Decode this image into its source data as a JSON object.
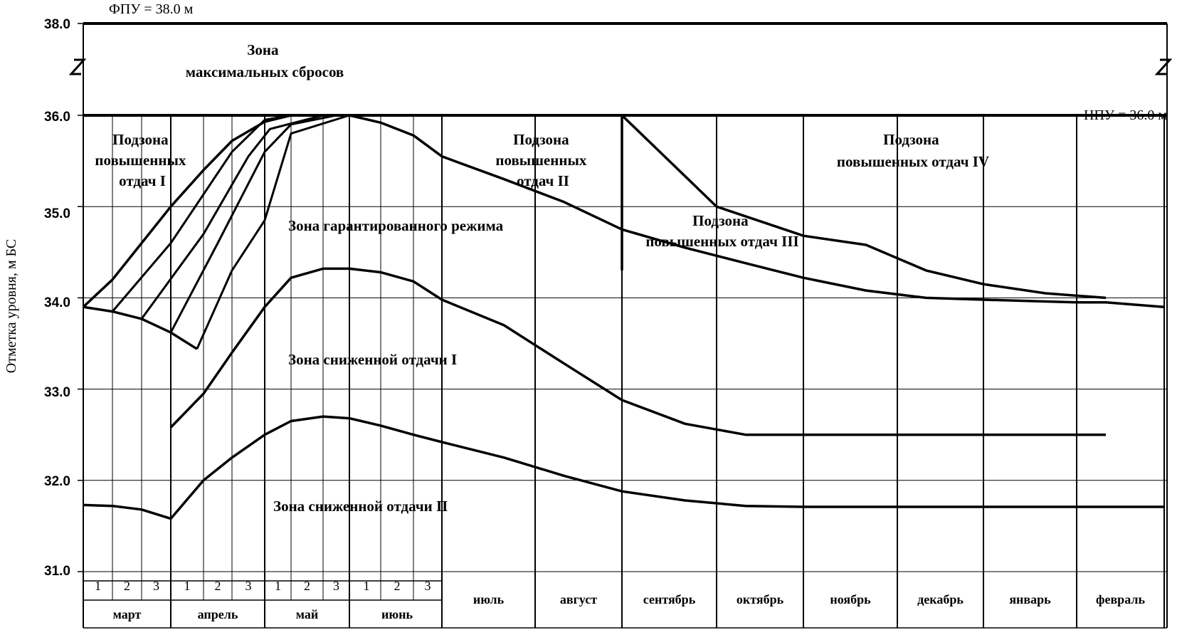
{
  "chart_data": {
    "type": "line",
    "ylabel": "Отметка уровня, м БС",
    "ylim": [
      31.0,
      38.0
    ],
    "y_axis_break": [
      36.0,
      38.0
    ],
    "y_ticks": [
      "31.0",
      "32.0",
      "33.0",
      "34.0",
      "35.0",
      "36.0",
      "38.0"
    ],
    "grid": true,
    "decades": [
      "1",
      "2",
      "3"
    ],
    "months": [
      "март",
      "апрель",
      "май",
      "июнь",
      "июль",
      "август",
      "сентябрь",
      "октябрь",
      "ноябрь",
      "декабрь",
      "январь",
      "февраль"
    ],
    "levels": [
      {
        "label": "ФПУ = 38.0 м",
        "y": 38.0
      },
      {
        "label": "НПУ = 36.0 м",
        "y": 36.0
      }
    ],
    "zone_labels": [
      {
        "lines": [
          "Зона",
          "максимальных сбросов"
        ]
      },
      {
        "lines": [
          "Подзона",
          "повышенных",
          "отдач I"
        ]
      },
      {
        "lines": [
          "Подзона",
          "повышенных",
          "отдач II"
        ]
      },
      {
        "lines": [
          "Подзона",
          "повышенных отдач III"
        ]
      },
      {
        "lines": [
          "Подзона",
          "повышенных отдач IV"
        ]
      },
      {
        "lines": [
          "Зона гарантированного режима"
        ]
      },
      {
        "lines": [
          "Зона сниженной отдачи I"
        ]
      },
      {
        "lines": [
          "Зона сниженной отдачи II"
        ]
      }
    ],
    "series": [
      {
        "x": [
          0,
          1,
          2,
          3,
          4,
          5,
          6,
          7,
          8,
          9,
          10,
          11,
          12,
          14,
          16,
          18,
          20,
          22,
          24,
          26,
          28,
          30,
          32,
          33,
          34,
          36
        ],
        "y": [
          31.73,
          31.72,
          31.68,
          31.58,
          32.0,
          32.25,
          32.5,
          32.65,
          32.7,
          32.68,
          32.6,
          32.5,
          32.42,
          32.25,
          32.05,
          31.88,
          31.78,
          31.72,
          31.71,
          31.71,
          31.71,
          31.71,
          31.71,
          31.71,
          31.71,
          31.71
        ]
      },
      {
        "x": [
          3,
          4,
          5,
          6,
          7,
          8,
          9,
          10,
          11,
          12,
          14,
          16,
          18,
          20,
          22,
          24,
          26,
          28,
          30,
          32,
          33,
          34
        ],
        "y": [
          32.58,
          32.95,
          33.4,
          33.9,
          34.22,
          34.32,
          34.32,
          34.28,
          34.18,
          33.98,
          33.7,
          33.28,
          32.88,
          32.62,
          32.5,
          32.5,
          32.5,
          32.5,
          32.5,
          32.5,
          32.5,
          32.5
        ]
      },
      {
        "x": [
          0,
          1,
          2,
          3,
          4,
          5,
          6,
          7,
          8,
          9,
          10,
          11,
          12,
          14,
          16,
          18,
          20,
          22,
          24,
          26,
          28,
          30,
          32,
          33,
          34,
          36
        ],
        "y": [
          33.9,
          34.2,
          34.6,
          35.0,
          35.4,
          35.72,
          35.93,
          36.0,
          36.0,
          36.0,
          35.92,
          35.78,
          35.55,
          35.3,
          35.05,
          34.75,
          34.55,
          34.38,
          34.22,
          34.08,
          34.0,
          33.98,
          33.96,
          33.95,
          33.95,
          33.9
        ]
      }
    ]
  }
}
